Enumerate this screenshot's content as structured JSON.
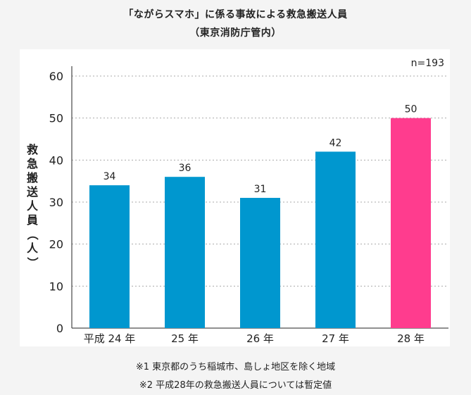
{
  "title": {
    "line1": "「ながらスマホ」に係る事故による救急搬送人員",
    "line2": "（東京消防庁管内）"
  },
  "sample_size": "n=193",
  "notes": [
    "※1 東京都のうち稲城市、島しょ地区を除く地域",
    "※2 平成28年の救急搬送人員については暫定値"
  ],
  "colors": {
    "bar_default": "#0097cf",
    "bar_highlight": "#ff3c8e",
    "grid": "#aaaaaa",
    "axis": "#222222"
  },
  "chart_data": {
    "type": "bar",
    "title": "「ながらスマホ」に係る事故による救急搬送人員",
    "subtitle": "（東京消防庁管内）",
    "ylabel": "救急搬送人員（人）",
    "xlabel": "",
    "categories": [
      "平成 24 年",
      "25 年",
      "26 年",
      "27 年",
      "28 年"
    ],
    "values": [
      34,
      36,
      31,
      42,
      50
    ],
    "highlight_index": 4,
    "ylim": [
      0,
      60
    ],
    "yticks": [
      0,
      10,
      20,
      30,
      40,
      50,
      60
    ],
    "grid": "horizontal dotted",
    "data_labels": [
      "34",
      "36",
      "31",
      "42",
      "50"
    ]
  }
}
